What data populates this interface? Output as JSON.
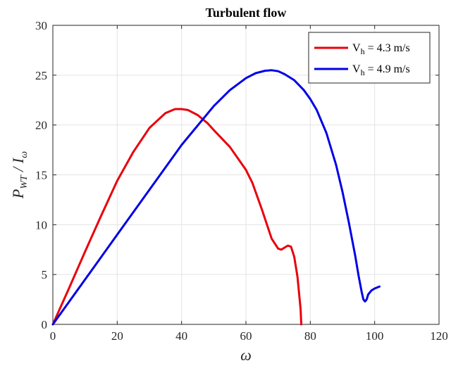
{
  "chart_data": {
    "type": "line",
    "title": "Turbulent flow",
    "xlabel": {
      "main": "ω"
    },
    "ylabel": {
      "main": "P",
      "sub1": "WT",
      "sep": " / ",
      "main2": "I",
      "sub2": "ω"
    },
    "xlim": [
      0,
      120
    ],
    "ylim": [
      0,
      30
    ],
    "xticks": [
      "0",
      "20",
      "40",
      "60",
      "80",
      "100",
      "120"
    ],
    "yticks": [
      "0",
      "5",
      "10",
      "15",
      "20",
      "25",
      "30"
    ],
    "grid": true,
    "legend_position": "top-right",
    "series": [
      {
        "name": {
          "main": "V",
          "sub": "h",
          "rest": " = 4.3 m/s"
        },
        "color": "#e8000b",
        "x": [
          0,
          5,
          10,
          15,
          20,
          25,
          30,
          35,
          38,
          40,
          42,
          45,
          48,
          50,
          55,
          60,
          62,
          65,
          68,
          70,
          71,
          72,
          73,
          74,
          75,
          76,
          76.5,
          77,
          77.2
        ],
        "y": [
          0,
          3.6,
          7.3,
          10.9,
          14.4,
          17.3,
          19.7,
          21.2,
          21.6,
          21.6,
          21.5,
          21.0,
          20.2,
          19.5,
          17.8,
          15.5,
          14.2,
          11.5,
          8.6,
          7.6,
          7.5,
          7.7,
          7.9,
          7.8,
          6.8,
          4.8,
          3.2,
          1.5,
          0
        ]
      },
      {
        "name": {
          "main": "V",
          "sub": "h",
          "rest": " = 4.9 m/s"
        },
        "color": "#0000e6",
        "x": [
          0,
          10,
          20,
          30,
          40,
          50,
          55,
          60,
          63,
          66,
          68,
          70,
          72,
          75,
          78,
          80,
          82,
          85,
          88,
          90,
          92,
          94,
          95,
          96,
          96.5,
          97,
          97.5,
          98,
          99,
          100,
          101.5
        ],
        "y": [
          0,
          4.5,
          9.0,
          13.5,
          18.0,
          21.9,
          23.5,
          24.7,
          25.2,
          25.45,
          25.5,
          25.4,
          25.1,
          24.5,
          23.5,
          22.6,
          21.5,
          19.2,
          16.0,
          13.3,
          10.2,
          6.8,
          4.9,
          3.2,
          2.5,
          2.3,
          2.5,
          3.0,
          3.4,
          3.6,
          3.8
        ]
      }
    ]
  }
}
